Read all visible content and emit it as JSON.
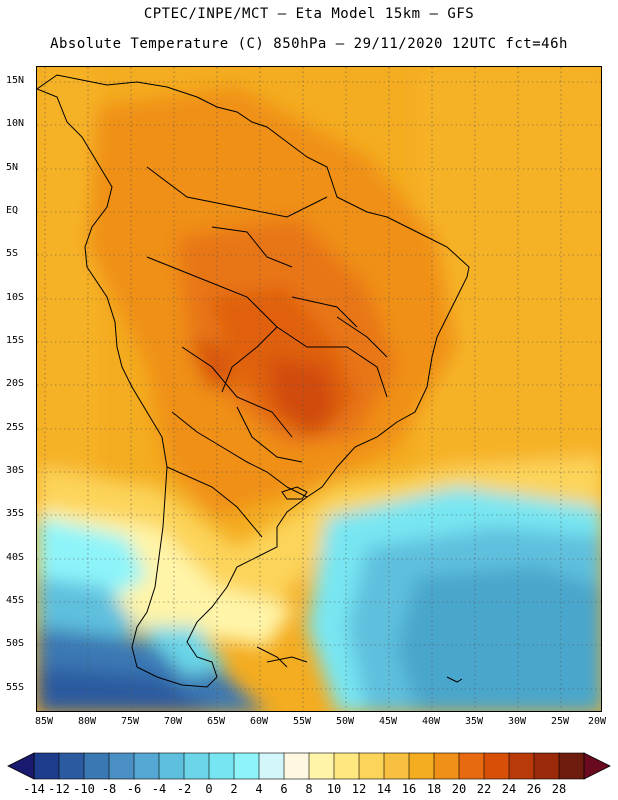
{
  "header": {
    "title_line1": "CPTEC/INPE/MCT –  Eta Model 15km – GFS",
    "title_line2": "Absolute Temperature (C) 850hPa – 29/11/2020 12UTC fct=46h"
  },
  "map": {
    "lat_labels": [
      "15N",
      "10N",
      "5N",
      "EQ",
      "5S",
      "10S",
      "15S",
      "20S",
      "25S",
      "30S",
      "35S",
      "40S",
      "45S",
      "50S",
      "55S"
    ],
    "lon_labels": [
      "85W",
      "80W",
      "75W",
      "70W",
      "65W",
      "60W",
      "55W",
      "50W",
      "45W",
      "40W",
      "35W",
      "30W",
      "25W",
      "20W"
    ]
  },
  "colorbar": {
    "labels": [
      "-14",
      "-12",
      "-10",
      "-8",
      "-6",
      "-4",
      "-2",
      "0",
      "2",
      "4",
      "6",
      "8",
      "10",
      "12",
      "14",
      "16",
      "18",
      "20",
      "22",
      "24",
      "26",
      "28"
    ],
    "colors": [
      "#1e3c8c",
      "#2b5aa0",
      "#3a78b4",
      "#4a90c4",
      "#55a8d4",
      "#5ec0de",
      "#6cd6e8",
      "#78e6f2",
      "#8ef4fa",
      "#d2f6fa",
      "#fff8e0",
      "#fff4a8",
      "#ffe880",
      "#fcd45a",
      "#f8c040",
      "#f4ac20",
      "#f09018",
      "#e86a10",
      "#d85008",
      "#b83a08",
      "#9a2a0a",
      "#6e1c0e"
    ],
    "left_arrow_color": "#1a1a70",
    "right_arrow_color": "#6a0a1e"
  }
}
